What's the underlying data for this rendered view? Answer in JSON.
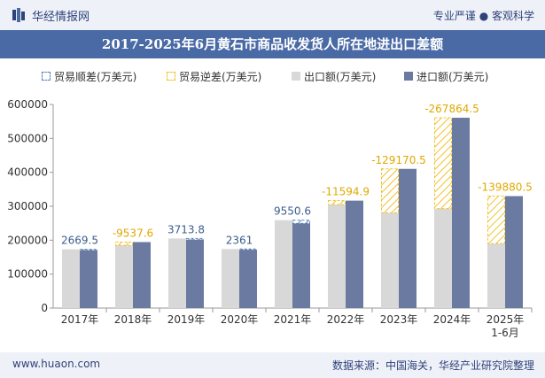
{
  "header": {
    "brand": "华经情报网",
    "tagline": "专业严谨 ● 客观科学"
  },
  "footer": {
    "website": "www.huaon.com",
    "source": "数据来源：中国海关，华经产业研究院整理"
  },
  "colors": {
    "title_bg": "#4a6aa6",
    "import": "#6a7aa0",
    "export": "#d8d8d8",
    "surplus": "#5b85b8",
    "deficit": "#f2c12e"
  },
  "chart_data": {
    "type": "bar",
    "title": "2017-2025年6月黄石市商品收发货人所在地进出口差额",
    "categories": [
      "2017年",
      "2018年",
      "2019年",
      "2020年",
      "2021年",
      "2022年",
      "2023年",
      "2024年",
      "2025年\n1-6月"
    ],
    "series": [
      {
        "name": "出口额(万美元)",
        "values": [
          173000,
          185000,
          205000,
          174000,
          259000,
          305000,
          281000,
          293000,
          190000
        ]
      },
      {
        "name": "进口额(万美元)",
        "values": [
          170300,
          194500,
          201300,
          171600,
          249400,
          316600,
          410200,
          560900,
          329900
        ]
      }
    ],
    "balance": {
      "surplus_name": "贸易顺差(万美元)",
      "deficit_name": "贸易逆差(万美元)",
      "labels": [
        "2669.5",
        "-9537.6",
        "3713.8",
        "2361",
        "9550.6",
        "-11594.9",
        "-129170.5",
        "-267864.5",
        "-139880.5"
      ]
    },
    "y_ticks": [
      "0",
      "100000",
      "200000",
      "300000",
      "400000",
      "500000",
      "600000"
    ],
    "ylim": [
      0,
      600000
    ],
    "grid": false,
    "legend_position": "top"
  }
}
